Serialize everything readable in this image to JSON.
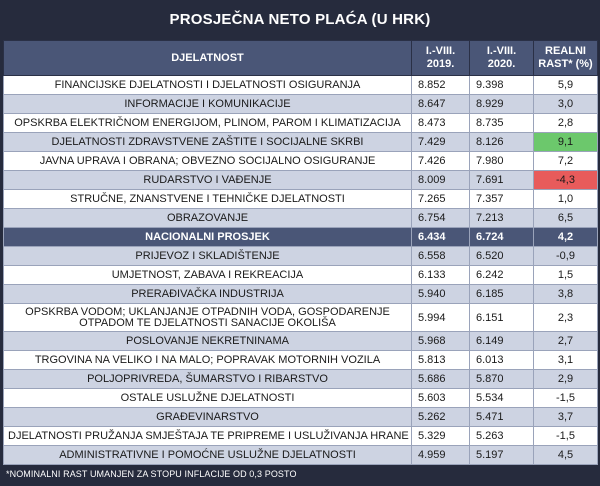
{
  "title": "PROSJEČNA NETO PLAĆA (U HRK)",
  "headers": {
    "activity": "DJELATNOST",
    "col2019_line1": "I.-VIII.",
    "col2019_line2": "2019.",
    "col2020_line1": "I.-VIII.",
    "col2020_line2": "2020.",
    "growth_line1": "REALNI",
    "growth_line2": "RAST* (%)"
  },
  "rows": [
    {
      "name": "FINANCIJSKE DJELATNOSTI I DJELATNOSTI OSIGURANJA",
      "y2019": "8.852",
      "y2020": "9.398",
      "growth": "5,9"
    },
    {
      "name": "INFORMACIJE I KOMUNIKACIJE",
      "y2019": "8.647",
      "y2020": "8.929",
      "growth": "3,0"
    },
    {
      "name": "OPSKRBA ELEKTRIČNOM ENERGIJOM, PLINOM, PAROM I KLIMATIZACIJA",
      "y2019": "8.473",
      "y2020": "8.735",
      "growth": "2,8"
    },
    {
      "name": "DJELATNOSTI ZDRAVSTVENE ZAŠTITE I SOCIJALNE SKRBI",
      "y2019": "7.429",
      "y2020": "8.126",
      "growth": "9,1"
    },
    {
      "name": "JAVNA UPRAVA I OBRANA; OBVEZNO SOCIJALNO OSIGURANJE",
      "y2019": "7.426",
      "y2020": "7.980",
      "growth": "7,2"
    },
    {
      "name": "RUDARSTVO I VAĐENJE",
      "y2019": "8.009",
      "y2020": "7.691",
      "growth": "-4,3"
    },
    {
      "name": "STRUČNE, ZNANSTVENE I TEHNIČKE DJELATNOSTI",
      "y2019": "7.265",
      "y2020": "7.357",
      "growth": "1,0"
    },
    {
      "name": "OBRAZOVANJE",
      "y2019": "6.754",
      "y2020": "7.213",
      "growth": "6,5"
    },
    {
      "name": "NACIONALNI PROSJEK",
      "y2019": "6.434",
      "y2020": "6.724",
      "growth": "4,2"
    },
    {
      "name": "PRIJEVOZ I SKLADIŠTENJE",
      "y2019": "6.558",
      "y2020": "6.520",
      "growth": "-0,9"
    },
    {
      "name": "UMJETNOST, ZABAVA I REKREACIJA",
      "y2019": "6.133",
      "y2020": "6.242",
      "growth": "1,5"
    },
    {
      "name": "PRERAĐIVAČKA INDUSTRIJA",
      "y2019": "5.940",
      "y2020": "6.185",
      "growth": "3,8"
    },
    {
      "name": "OPSKRBA VODOM; UKLANJANJE OTPADNIH VODA, GOSPODARENJE OTPADOM TE DJELATNOSTI SANACIJE OKOLIŠA",
      "y2019": "5.994",
      "y2020": "6.151",
      "growth": "2,3"
    },
    {
      "name": "POSLOVANJE NEKRETNINAMA",
      "y2019": "5.968",
      "y2020": "6.149",
      "growth": "2,7"
    },
    {
      "name": "TRGOVINA NA VELIKO I NA MALO; POPRAVAK MOTORNIH VOZILA",
      "y2019": "5.813",
      "y2020": "6.013",
      "growth": "3,1"
    },
    {
      "name": "POLJOPRIVREDA, ŠUMARSTVO I RIBARSTVO",
      "y2019": "5.686",
      "y2020": "5.870",
      "growth": "2,9"
    },
    {
      "name": "OSTALE USLUŽNE DJELATNOSTI",
      "y2019": "5.603",
      "y2020": "5.534",
      "growth": "-1,5"
    },
    {
      "name": "GRAĐEVINARSTVO",
      "y2019": "5.262",
      "y2020": "5.471",
      "growth": "3,7"
    },
    {
      "name": "DJELATNOSTI PRUŽANJA SMJEŠTAJA TE PRIPREME I USLUŽIVANJA HRANE",
      "y2019": "5.329",
      "y2020": "5.263",
      "growth": "-1,5"
    },
    {
      "name": "ADMINISTRATIVNE I POMOĆNE USLUŽNE DJELATNOSTI",
      "y2019": "4.959",
      "y2020": "5.197",
      "growth": "4,5"
    }
  ],
  "colors": {
    "background": "#262b3d",
    "header": "#4a5677",
    "row_light": "#ffffff",
    "row_shaded": "#cdd3e2",
    "highlight_positive": "#6cc86c",
    "highlight_negative": "#e85b5b"
  },
  "footnote": "*NOMINALNI RAST UMANJEN ZA STOPU INFLACIJE OD 0,3 POSTO"
}
